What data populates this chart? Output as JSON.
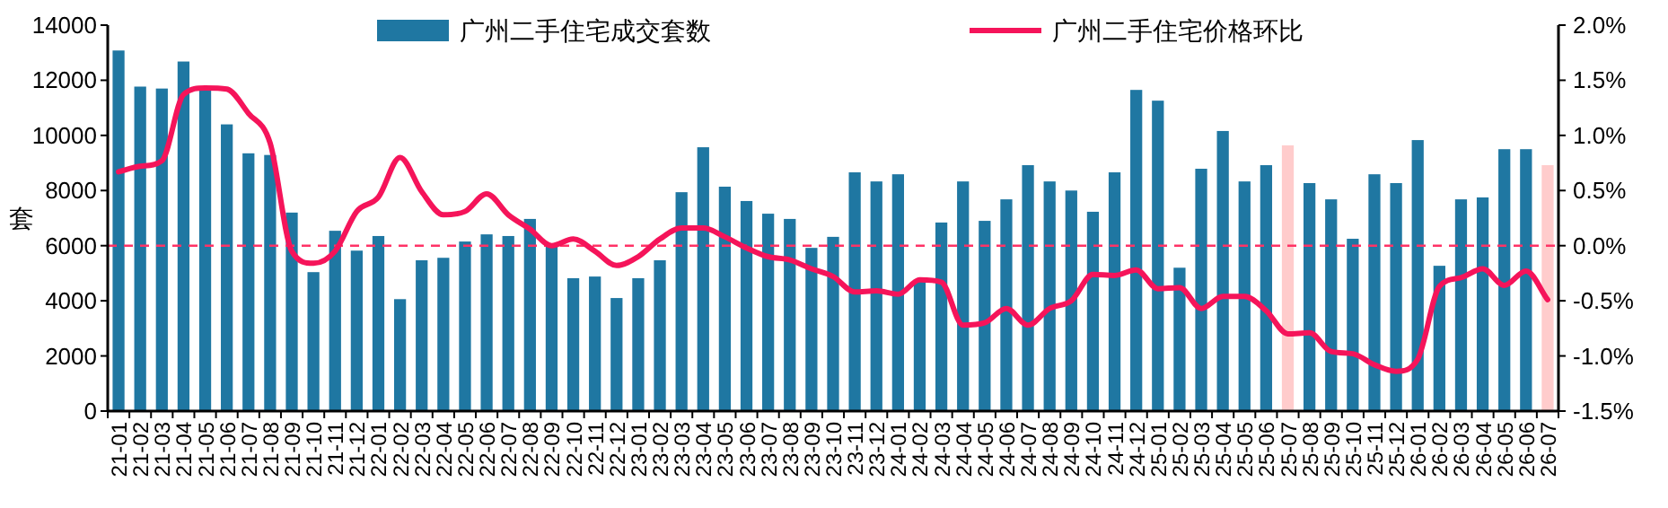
{
  "chart_data": {
    "type": "bar",
    "ylabel": "套",
    "legend": "top",
    "categories": [
      "21-01",
      "21-02",
      "21-03",
      "21-04",
      "21-05",
      "21-06",
      "21-07",
      "21-08",
      "21-09",
      "21-10",
      "21-11",
      "21-12",
      "22-01",
      "22-02",
      "22-03",
      "22-04",
      "22-05",
      "22-06",
      "22-07",
      "22-08",
      "22-09",
      "22-10",
      "22-11",
      "22-12",
      "23-01",
      "23-02",
      "23-03",
      "23-04",
      "23-05",
      "23-06",
      "23-07",
      "23-08",
      "23-09",
      "23-10",
      "23-11",
      "23-12",
      "24-01",
      "24-02",
      "24-03",
      "24-04",
      "24-05",
      "24-06",
      "24-07",
      "24-08",
      "24-09",
      "24-10",
      "24-11",
      "24-12",
      "25-01",
      "25-02",
      "25-03",
      "25-04",
      "25-05",
      "25-06",
      "25-07",
      "25-08",
      "25-09",
      "25-10",
      "25-11",
      "25-12",
      "26-01",
      "26-02",
      "26-03",
      "26-04",
      "26-05",
      "26-06",
      "26-07"
    ],
    "series": [
      {
        "name": "广州二手住宅成交套数",
        "color": "#1f77a2",
        "colors": [
          "#1f77a2",
          "#1f77a2",
          "#1f77a2",
          "#1f77a2",
          "#1f77a2",
          "#1f77a2",
          "#1f77a2",
          "#1f77a2",
          "#1f77a2",
          "#1f77a2",
          "#1f77a2",
          "#1f77a2",
          "#1f77a2",
          "#1f77a2",
          "#1f77a2",
          "#1f77a2",
          "#1f77a2",
          "#1f77a2",
          "#1f77a2",
          "#1f77a2",
          "#1f77a2",
          "#1f77a2",
          "#1f77a2",
          "#1f77a2",
          "#1f77a2",
          "#1f77a2",
          "#1f77a2",
          "#1f77a2",
          "#1f77a2",
          "#1f77a2",
          "#1f77a2",
          "#1f77a2",
          "#1f77a2",
          "#1f77a2",
          "#1f77a2",
          "#1f77a2",
          "#1f77a2",
          "#1f77a2",
          "#1f77a2",
          "#1f77a2",
          "#1f77a2",
          "#1f77a2",
          "#1f77a2",
          "#1f77a2",
          "#1f77a2",
          "#1f77a2",
          "#1f77a2",
          "#1f77a2",
          "#1f77a2",
          "#1f77a2",
          "#1f77a2",
          "#1f77a2",
          "#1f77a2",
          "#1f77a2",
          "#ffcccc",
          "#1f77a2",
          "#1f77a2",
          "#1f77a2",
          "#1f77a2",
          "#1f77a2",
          "#1f77a2",
          "#1f77a2",
          "#1f77a2",
          "#1f77a2",
          "#1f77a2",
          "#1f77a2",
          "#ffcccc"
        ],
        "values": [
          13080,
          11770,
          11700,
          12680,
          11770,
          10400,
          9350,
          9290,
          7200,
          5040,
          6540,
          5820,
          6350,
          4060,
          5470,
          5560,
          6150,
          6410,
          6350,
          6970,
          6000,
          4820,
          4880,
          4100,
          4820,
          5470,
          7940,
          9570,
          8140,
          7620,
          7160,
          6970,
          5920,
          6320,
          8660,
          8330,
          8590,
          4690,
          6840,
          8330,
          6900,
          7680,
          8920,
          8330,
          8000,
          7230,
          8660,
          11650,
          11260,
          5200,
          8790,
          10160,
          8330,
          8920,
          9640,
          8270,
          7680,
          6250,
          8590,
          8270,
          9830,
          5270,
          7680,
          7750,
          9500,
          9500,
          8920
        ]
      },
      {
        "name": "广州二手住宅价格环比",
        "type": "line",
        "axis": "y2",
        "color": "#f5145a",
        "values": [
          0.67,
          0.72,
          0.77,
          1.37,
          1.43,
          1.42,
          1.2,
          0.93,
          -0.05,
          -0.16,
          -0.05,
          0.31,
          0.44,
          0.8,
          0.49,
          0.28,
          0.31,
          0.47,
          0.28,
          0.15,
          0.0,
          0.06,
          -0.05,
          -0.18,
          -0.1,
          0.06,
          0.16,
          0.16,
          0.08,
          -0.02,
          -0.1,
          -0.13,
          -0.21,
          -0.28,
          -0.42,
          -0.41,
          -0.44,
          -0.31,
          -0.33,
          -0.72,
          -0.7,
          -0.57,
          -0.72,
          -0.57,
          -0.5,
          -0.26,
          -0.27,
          -0.22,
          -0.39,
          -0.38,
          -0.57,
          -0.46,
          -0.46,
          -0.59,
          -0.8,
          -0.79,
          -0.96,
          -0.98,
          -1.08,
          -1.14,
          -1.03,
          -0.37,
          -0.29,
          -0.21,
          -0.36,
          -0.23,
          -0.49
        ]
      }
    ],
    "ylim": [
      0,
      14000
    ],
    "yticks": [
      0,
      2000,
      4000,
      6000,
      8000,
      10000,
      12000,
      14000
    ],
    "y2lim": [
      -1.5,
      2.0
    ],
    "y2ticks": [
      {
        "value": -1.5,
        "label": "-1.5%"
      },
      {
        "value": -1.0,
        "label": "-1.0%"
      },
      {
        "value": -0.5,
        "label": "-0.5%"
      },
      {
        "value": 0.0,
        "label": "0.0%"
      },
      {
        "value": 0.5,
        "label": "0.5%"
      },
      {
        "value": 1.0,
        "label": "1.0%"
      },
      {
        "value": 1.5,
        "label": "1.5%"
      },
      {
        "value": 2.0,
        "label": "2.0%"
      }
    ],
    "ref_lines": [
      {
        "axis": "y2",
        "value": 0,
        "color": "#ff3366",
        "line_style": "dashed"
      }
    ]
  }
}
